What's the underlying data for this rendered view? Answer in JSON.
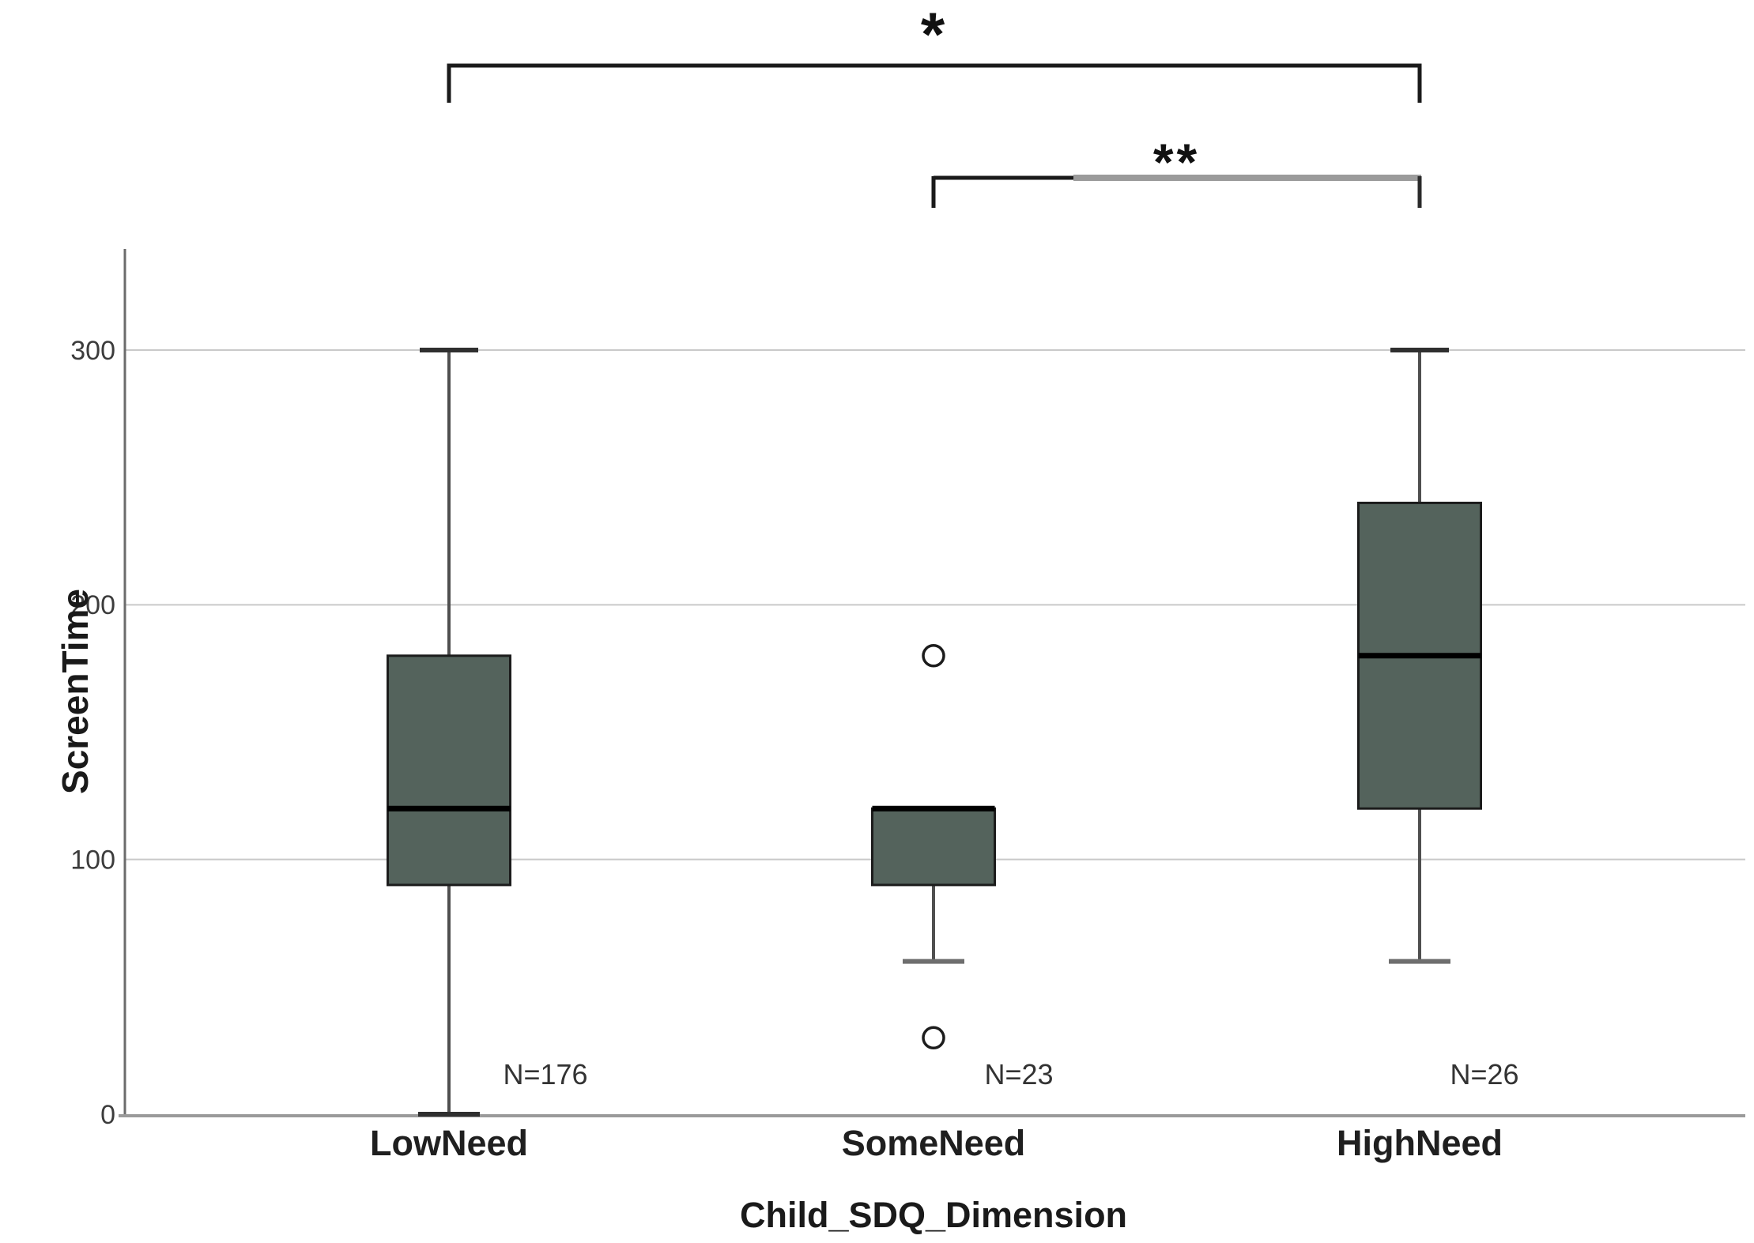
{
  "chart_data": {
    "type": "boxplot",
    "title": "",
    "xlabel": "Child_SDQ_Dimension",
    "ylabel": "ScreenTime",
    "ylim": [
      0,
      340
    ],
    "yticks": [
      0,
      100,
      200,
      300
    ],
    "ytick_labels": [
      "0",
      "100",
      "200",
      "300"
    ],
    "grid": "horizontal",
    "legend": "none",
    "categories": [
      "LowNeed",
      "SomeNeed",
      "HighNeed"
    ],
    "series": [
      {
        "category": "LowNeed",
        "n": 176,
        "n_label": "N=176",
        "whisker_low": 0,
        "q1": 90,
        "median": 120,
        "q3": 180,
        "whisker_high": 300,
        "outliers": []
      },
      {
        "category": "SomeNeed",
        "n": 23,
        "n_label": "N=23",
        "whisker_low": 60,
        "q1": 90,
        "median": 120,
        "q3": 120,
        "whisker_high": 120,
        "outliers": [
          180,
          30
        ]
      },
      {
        "category": "HighNeed",
        "n": 26,
        "n_label": "N=26",
        "whisker_low": 60,
        "q1": 120,
        "median": 180,
        "q3": 240,
        "whisker_high": 300,
        "outliers": []
      }
    ],
    "significance_brackets": [
      {
        "label": "*",
        "from": "LowNeed",
        "to": "HighNeed"
      },
      {
        "label": "**",
        "from": "SomeNeed",
        "to": "HighNeed"
      }
    ],
    "colors": {
      "background": "#ffffff",
      "box_fill": "#54635c",
      "box_border": "#1c1c1c",
      "median": "#000000",
      "whisker": "#4f4f4f",
      "whisker_cap_dark": "#2f2f2f",
      "whisker_cap_gray": "#6e6e6e",
      "gridline": "#c9c9c9",
      "y_axis": "#6b6b6b",
      "x_axis": "#9a9a9a",
      "tick_text": "#3c3c3c",
      "n_text": "#333333",
      "category_text": "#1f1f1f",
      "bracket_primary": "#1a1a1a",
      "bracket_secondary": "#9b9b9b"
    }
  }
}
